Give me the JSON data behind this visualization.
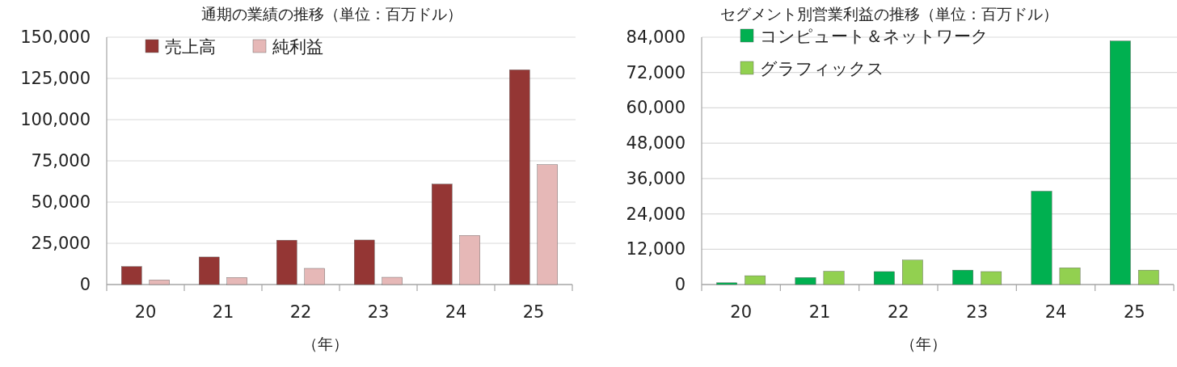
{
  "chart_data": [
    {
      "type": "bar",
      "title": "通期の業績の推移（単位：百万ドル）",
      "xlabel": "（年）",
      "categories": [
        "20",
        "21",
        "22",
        "23",
        "24",
        "25"
      ],
      "series": [
        {
          "name": "売上高",
          "color": "#943634",
          "values": [
            10900,
            16700,
            26900,
            27000,
            60900,
            130200
          ]
        },
        {
          "name": "純利益",
          "color": "#e6b8b7",
          "values": [
            2800,
            4300,
            9800,
            4400,
            29800,
            72700
          ]
        }
      ],
      "ylim": [
        0,
        150000
      ],
      "yticks": [
        {
          "value": 0,
          "label": "0"
        },
        {
          "value": 25000,
          "label": "25,000"
        },
        {
          "value": 50000,
          "label": "50,000"
        },
        {
          "value": 75000,
          "label": "75,000"
        },
        {
          "value": 100000,
          "label": "100,000"
        },
        {
          "value": 125000,
          "label": "125,000"
        },
        {
          "value": 150000,
          "label": "150,000"
        }
      ],
      "grid": "y",
      "legend": "top left"
    },
    {
      "type": "bar",
      "title": "セグメント別営業利益の推移（単位：百万ドル）",
      "xlabel": "（年）",
      "categories": [
        "20",
        "21",
        "22",
        "23",
        "24",
        "25"
      ],
      "series": [
        {
          "name": "コンピュート＆ネットワーク",
          "color": "#00b050",
          "values": [
            600,
            2400,
            4400,
            4900,
            31700,
            82700
          ]
        },
        {
          "name": "グラフィックス",
          "color": "#92d050",
          "values": [
            3000,
            4500,
            8300,
            4400,
            5700,
            4900
          ]
        }
      ],
      "ylim": [
        0,
        84000
      ],
      "yticks": [
        {
          "value": 0,
          "label": "0"
        },
        {
          "value": 12000,
          "label": "12,000"
        },
        {
          "value": 24000,
          "label": "24,000"
        },
        {
          "value": 36000,
          "label": "36,000"
        },
        {
          "value": 48000,
          "label": "48,000"
        },
        {
          "value": 60000,
          "label": "60,000"
        },
        {
          "value": 72000,
          "label": "72,000"
        },
        {
          "value": 84000,
          "label": "84,000"
        }
      ],
      "grid": "y",
      "legend": "top left"
    }
  ]
}
